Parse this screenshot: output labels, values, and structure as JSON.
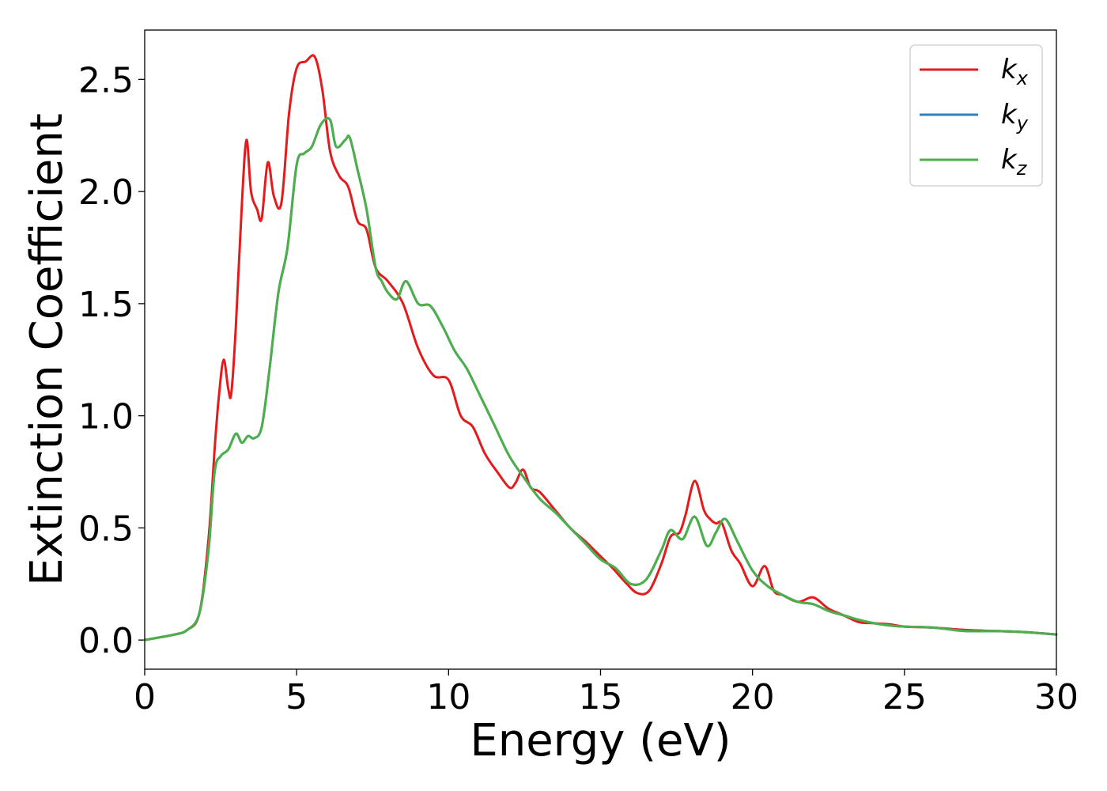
{
  "chart_data": {
    "type": "line",
    "xlabel": "Energy (eV)",
    "ylabel": "Extinction Coefficient",
    "xlim": [
      0,
      30
    ],
    "ylim": [
      -0.13,
      2.72
    ],
    "xticks": [
      "0",
      "5",
      "10",
      "15",
      "20",
      "25",
      "30"
    ],
    "yticks": [
      "0.0",
      "0.5",
      "1.0",
      "1.5",
      "2.0",
      "2.5"
    ],
    "grid": false,
    "legend_position": "top-right",
    "series": [
      {
        "name": "k_x",
        "label_main": "k",
        "label_sub": "x",
        "color": "#e41a1c",
        "x": [
          0,
          0.5,
          1,
          1.4,
          1.8,
          2.1,
          2.3,
          2.45,
          2.6,
          2.75,
          2.85,
          3.0,
          3.2,
          3.35,
          3.5,
          3.7,
          3.85,
          4.05,
          4.25,
          4.5,
          4.75,
          5.0,
          5.3,
          5.6,
          5.85,
          6.1,
          6.4,
          6.7,
          7.0,
          7.3,
          7.6,
          8.0,
          8.5,
          9.0,
          9.5,
          10.0,
          10.4,
          10.8,
          11.2,
          11.6,
          12.0,
          12.2,
          12.45,
          12.7,
          13.0,
          13.5,
          14.0,
          14.5,
          14.8,
          15.1,
          15.4,
          15.8,
          16.2,
          16.6,
          17.0,
          17.3,
          17.6,
          17.8,
          18.1,
          18.4,
          18.6,
          18.8,
          19.0,
          19.3,
          19.6,
          20.0,
          20.4,
          20.7,
          21.0,
          21.5,
          22.0,
          22.5,
          23.0,
          23.5,
          24.0,
          24.5,
          25.0,
          26.0,
          27.0,
          28.0,
          29.0,
          30.0
        ],
        "y": [
          0.0,
          0.012,
          0.025,
          0.045,
          0.12,
          0.45,
          0.85,
          1.1,
          1.25,
          1.12,
          1.1,
          1.4,
          1.95,
          2.23,
          2.0,
          1.92,
          1.88,
          2.13,
          1.98,
          1.95,
          2.35,
          2.55,
          2.58,
          2.6,
          2.45,
          2.18,
          2.07,
          2.02,
          1.87,
          1.83,
          1.66,
          1.6,
          1.5,
          1.3,
          1.18,
          1.16,
          1.0,
          0.95,
          0.83,
          0.75,
          0.68,
          0.7,
          0.76,
          0.68,
          0.66,
          0.58,
          0.5,
          0.44,
          0.4,
          0.36,
          0.32,
          0.26,
          0.21,
          0.22,
          0.34,
          0.46,
          0.48,
          0.56,
          0.71,
          0.58,
          0.54,
          0.52,
          0.52,
          0.4,
          0.34,
          0.24,
          0.33,
          0.22,
          0.2,
          0.17,
          0.19,
          0.14,
          0.11,
          0.08,
          0.075,
          0.07,
          0.06,
          0.055,
          0.045,
          0.04,
          0.035,
          0.025
        ]
      },
      {
        "name": "k_y",
        "label_main": "k",
        "label_sub": "y",
        "color": "#377eb8",
        "x": [
          0,
          0.5,
          1,
          1.4,
          1.8,
          2.1,
          2.3,
          2.5,
          2.75,
          3.0,
          3.2,
          3.4,
          3.6,
          3.85,
          4.1,
          4.4,
          4.7,
          5.0,
          5.25,
          5.5,
          5.8,
          6.1,
          6.3,
          6.6,
          6.75,
          7.0,
          7.3,
          7.6,
          7.8,
          8.0,
          8.3,
          8.6,
          9.0,
          9.4,
          9.8,
          10.2,
          10.6,
          11.0,
          11.5,
          12.0,
          12.5,
          13.0,
          13.5,
          14.0,
          14.5,
          15.0,
          15.5,
          16.0,
          16.5,
          17.0,
          17.3,
          17.7,
          18.1,
          18.5,
          18.8,
          19.1,
          19.5,
          20.0,
          20.5,
          21.0,
          21.5,
          22.0,
          22.5,
          23.0,
          23.5,
          24.0,
          24.5,
          25.0,
          26.0,
          27.0,
          28.0,
          29.0,
          30.0
        ],
        "y": [
          0.0,
          0.012,
          0.025,
          0.045,
          0.12,
          0.4,
          0.75,
          0.82,
          0.85,
          0.92,
          0.88,
          0.91,
          0.9,
          0.95,
          1.2,
          1.55,
          1.75,
          2.12,
          2.17,
          2.2,
          2.3,
          2.32,
          2.2,
          2.23,
          2.24,
          2.1,
          1.92,
          1.66,
          1.6,
          1.55,
          1.52,
          1.6,
          1.5,
          1.49,
          1.4,
          1.29,
          1.21,
          1.1,
          0.96,
          0.82,
          0.72,
          0.63,
          0.57,
          0.5,
          0.43,
          0.36,
          0.32,
          0.25,
          0.27,
          0.4,
          0.49,
          0.45,
          0.55,
          0.42,
          0.48,
          0.54,
          0.44,
          0.31,
          0.24,
          0.2,
          0.17,
          0.16,
          0.13,
          0.11,
          0.09,
          0.075,
          0.065,
          0.06,
          0.055,
          0.04,
          0.04,
          0.035,
          0.025
        ]
      },
      {
        "name": "k_z",
        "label_main": "k",
        "label_sub": "z",
        "color": "#4daf4a",
        "x": [
          0,
          0.5,
          1,
          1.4,
          1.8,
          2.1,
          2.3,
          2.5,
          2.75,
          3.0,
          3.2,
          3.4,
          3.6,
          3.85,
          4.1,
          4.4,
          4.7,
          5.0,
          5.25,
          5.5,
          5.8,
          6.1,
          6.3,
          6.6,
          6.75,
          7.0,
          7.3,
          7.6,
          7.8,
          8.0,
          8.3,
          8.6,
          9.0,
          9.4,
          9.8,
          10.2,
          10.6,
          11.0,
          11.5,
          12.0,
          12.5,
          13.0,
          13.5,
          14.0,
          14.5,
          15.0,
          15.5,
          16.0,
          16.5,
          17.0,
          17.3,
          17.7,
          18.1,
          18.5,
          18.8,
          19.1,
          19.5,
          20.0,
          20.5,
          21.0,
          21.5,
          22.0,
          22.5,
          23.0,
          23.5,
          24.0,
          24.5,
          25.0,
          26.0,
          27.0,
          28.0,
          29.0,
          30.0
        ],
        "y": [
          0.0,
          0.012,
          0.025,
          0.045,
          0.12,
          0.4,
          0.75,
          0.82,
          0.85,
          0.92,
          0.88,
          0.91,
          0.9,
          0.95,
          1.2,
          1.55,
          1.75,
          2.12,
          2.17,
          2.2,
          2.3,
          2.32,
          2.2,
          2.23,
          2.24,
          2.1,
          1.92,
          1.66,
          1.6,
          1.55,
          1.52,
          1.6,
          1.5,
          1.49,
          1.4,
          1.29,
          1.21,
          1.1,
          0.96,
          0.82,
          0.72,
          0.63,
          0.57,
          0.5,
          0.43,
          0.36,
          0.32,
          0.25,
          0.27,
          0.4,
          0.49,
          0.45,
          0.55,
          0.42,
          0.48,
          0.54,
          0.44,
          0.31,
          0.24,
          0.2,
          0.17,
          0.16,
          0.13,
          0.11,
          0.09,
          0.075,
          0.065,
          0.06,
          0.055,
          0.04,
          0.04,
          0.035,
          0.025
        ]
      }
    ]
  }
}
